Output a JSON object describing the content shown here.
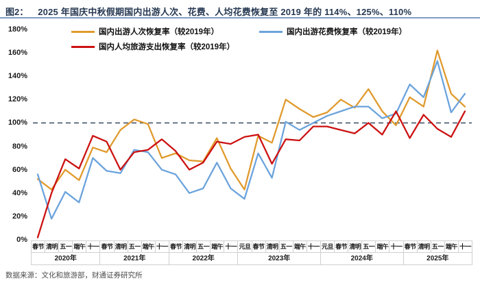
{
  "header": {
    "prefix": "图2：",
    "title": "2025 年国庆中秋假期国内出游人次、花费、人均花费恢复至 2019 年的 114%、125%、110%"
  },
  "footer": {
    "source": "数据来源：文化和旅游部，财通证券研究所"
  },
  "chart_data": {
    "type": "line",
    "title": "2025 年国庆中秋假期国内出游人次、花费、人均花费恢复至 2019 年的 114%、125%、110%",
    "xlabel": "",
    "ylabel": "",
    "ylim": [
      0,
      180
    ],
    "yticks": [
      0,
      20,
      40,
      60,
      80,
      100,
      120,
      140,
      160,
      180
    ],
    "ytick_suffix": "%",
    "grid": false,
    "legend_position": "top",
    "reference_line": {
      "value": 100,
      "style": "dashed",
      "color": "#44546A"
    },
    "groups": [
      {
        "year": "2020年",
        "holidays": [
          "春节",
          "清明",
          "五一",
          "端午",
          "十一"
        ]
      },
      {
        "year": "2021年",
        "holidays": [
          "春节",
          "清明",
          "五一",
          "端午",
          "十一"
        ]
      },
      {
        "year": "2022年",
        "holidays": [
          "春节",
          "清明",
          "五一",
          "端午",
          "十一"
        ]
      },
      {
        "year": "2023年",
        "holidays": [
          "元旦",
          "春节",
          "清明",
          "五一",
          "端午",
          "十一"
        ]
      },
      {
        "year": "2024年",
        "holidays": [
          "元旦",
          "春节",
          "清明",
          "五一",
          "端午",
          "十一"
        ]
      },
      {
        "year": "2025年",
        "holidays": [
          "春节",
          "清明",
          "五一",
          "端午",
          "十一"
        ]
      }
    ],
    "series": [
      {
        "name": "国内出游人次恢复率（较2019年）",
        "color": "#E09A2D",
        "values": [
          52,
          43,
          60,
          51,
          79,
          75,
          94,
          103,
          99,
          70,
          74,
          68,
          67,
          87,
          61,
          43,
          89,
          83,
          120,
          112,
          105,
          109,
          120,
          113,
          129,
          110,
          98,
          122,
          114,
          162,
          125,
          114
        ]
      },
      {
        "name": "国内出游花费恢复率（较2019年）",
        "color": "#6BA3DC",
        "values": [
          56,
          18,
          41,
          32,
          70,
          59,
          57,
          77,
          75,
          60,
          56,
          40,
          44,
          66,
          44,
          35,
          74,
          53,
          101,
          94,
          100,
          106,
          110,
          114,
          114,
          104,
          108,
          133,
          122,
          153,
          109,
          125
        ]
      },
      {
        "name": "国内人均旅游支出恢复率（较2019年）",
        "color": "#CC1111",
        "values": [
          2,
          40,
          69,
          61,
          89,
          84,
          60,
          75,
          77,
          86,
          76,
          60,
          66,
          84,
          82,
          88,
          90,
          65,
          86,
          85,
          97,
          97,
          94,
          91,
          100,
          90,
          110,
          87,
          107,
          95,
          88,
          110
        ]
      }
    ]
  }
}
